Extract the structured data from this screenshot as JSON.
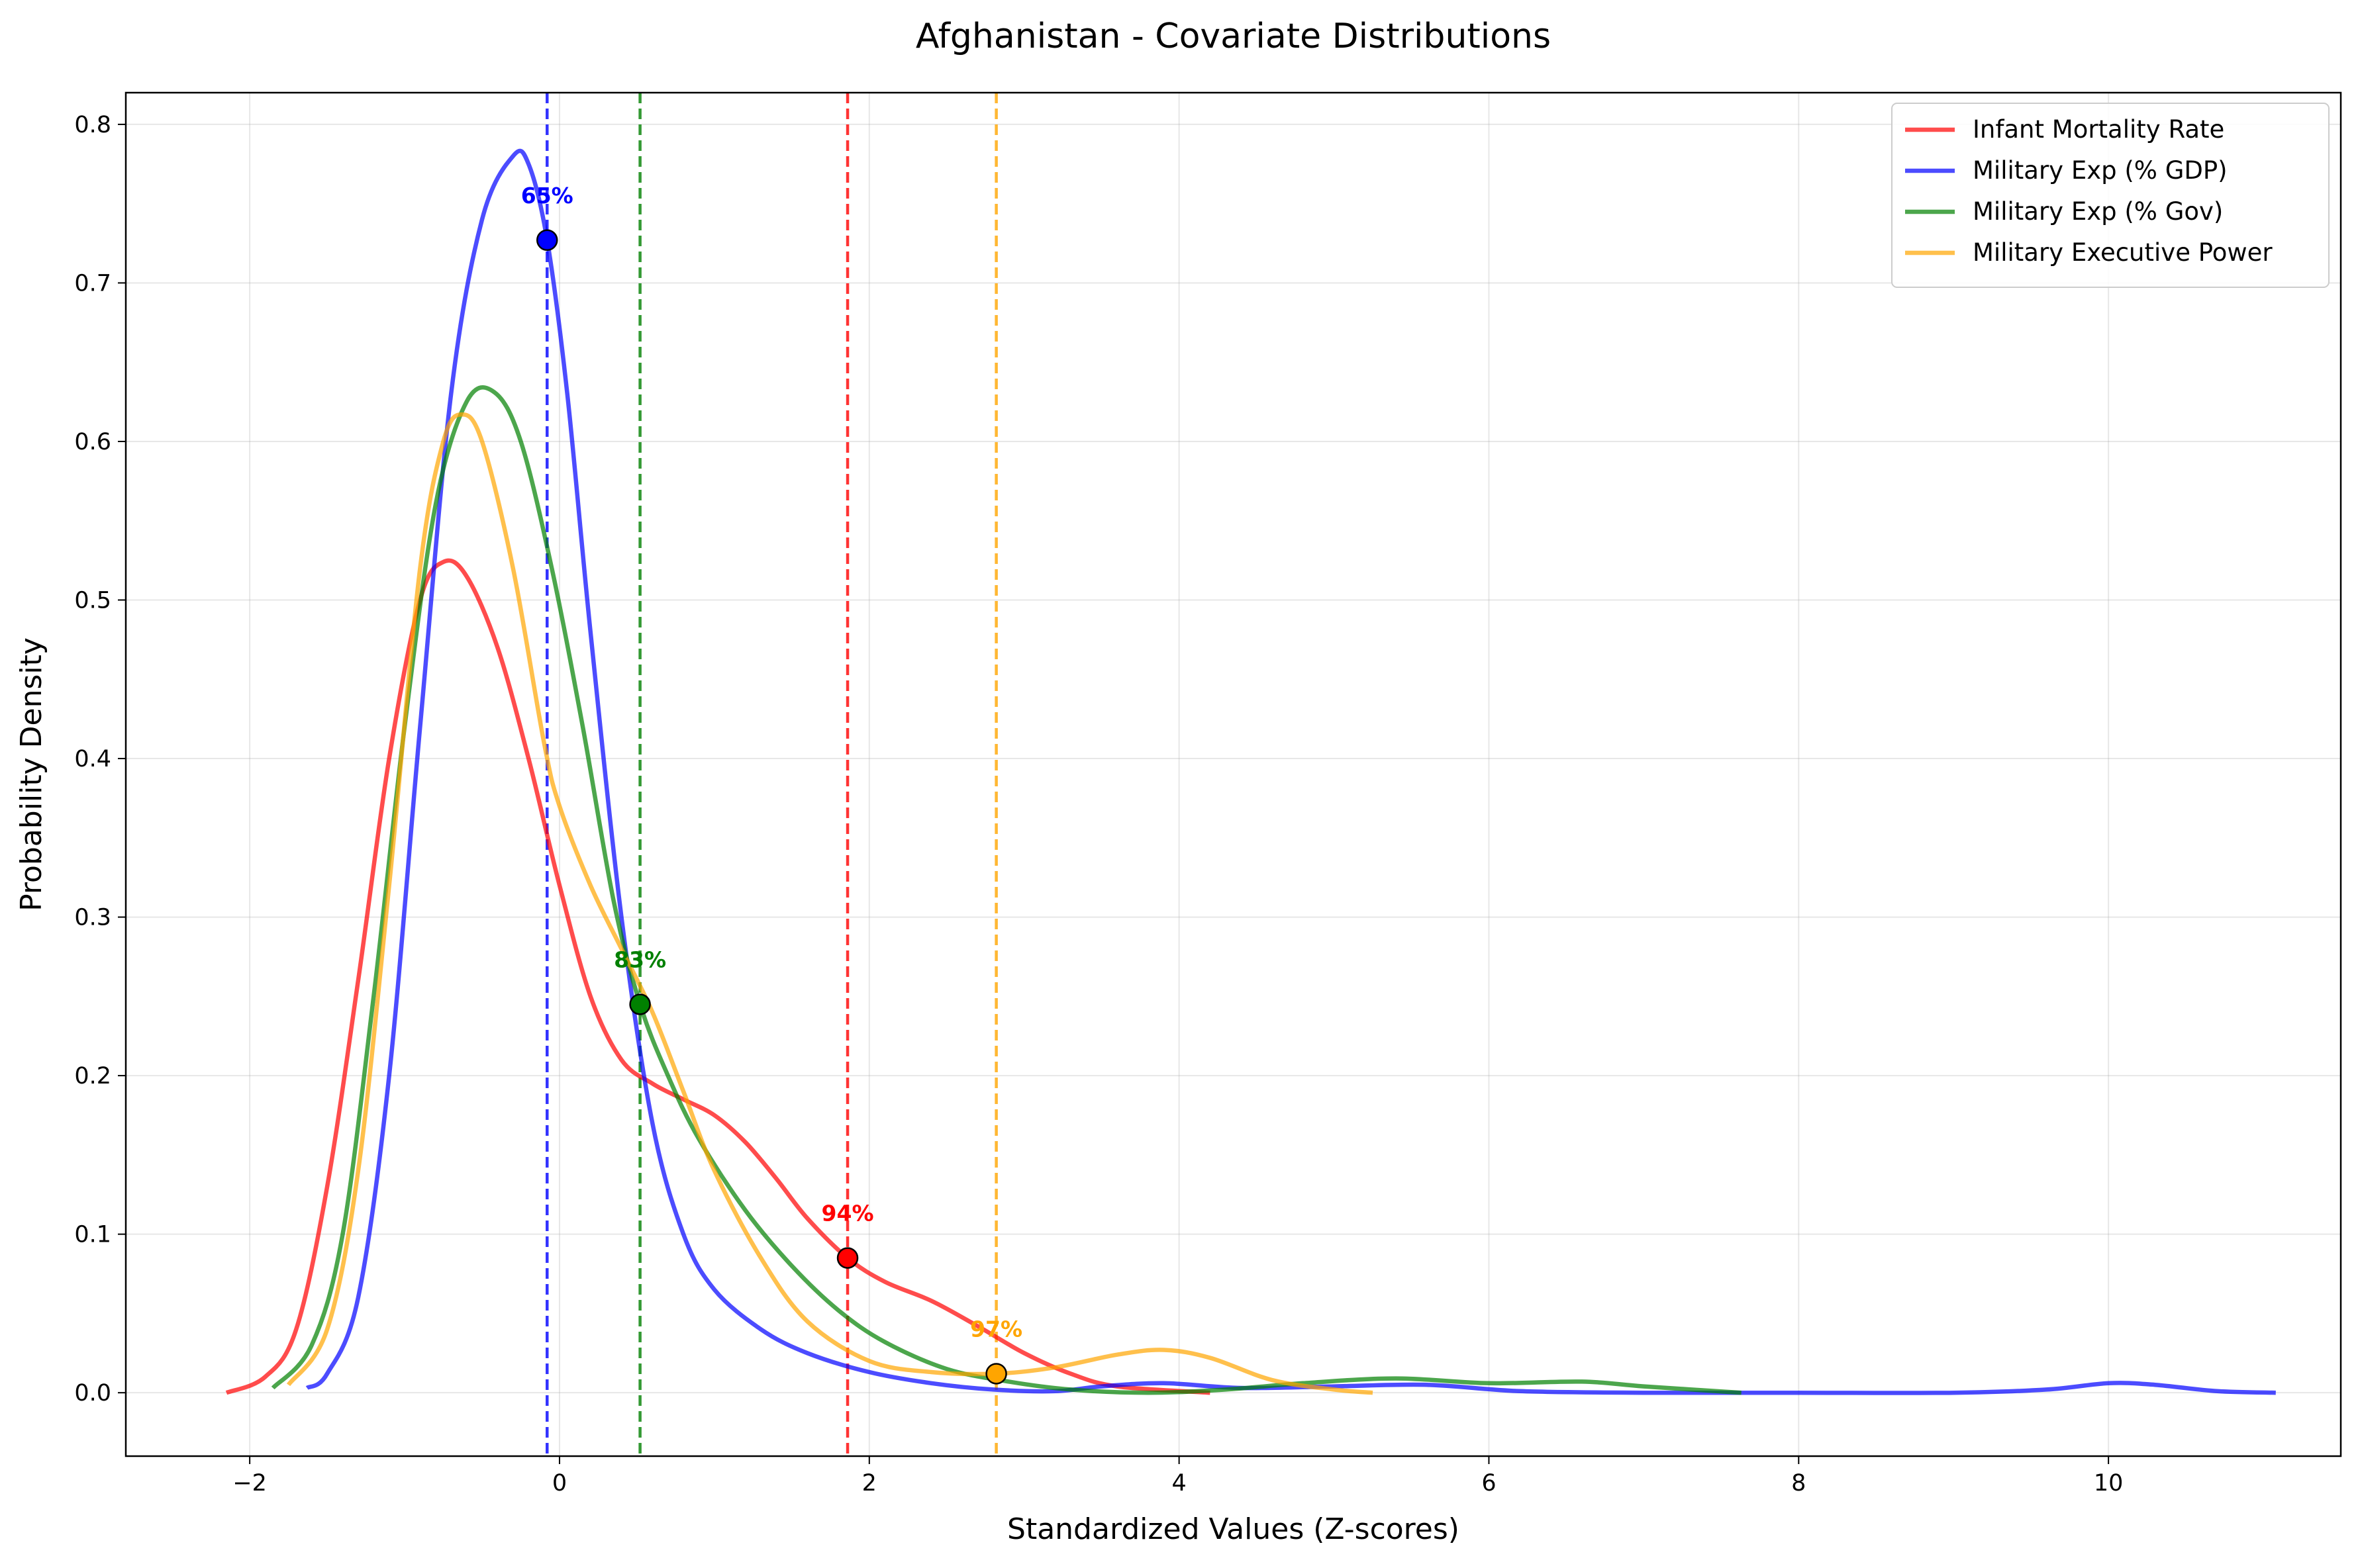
{
  "chart_data": {
    "type": "line",
    "title": "Afghanistan - Covariate Distributions",
    "xlabel": "Standardized Values (Z-scores)",
    "ylabel": "Probability Density",
    "xlim": [
      -2.8,
      11.5
    ],
    "ylim": [
      -0.04,
      0.82
    ],
    "xticks": [
      -2,
      0,
      2,
      4,
      6,
      8,
      10
    ],
    "yticks": [
      0.0,
      0.1,
      0.2,
      0.3,
      0.4,
      0.5,
      0.6,
      0.7,
      0.8
    ],
    "grid": true,
    "legend_position": "top-right",
    "series": [
      {
        "name": "Infant Mortality Rate",
        "color": "#ff0000",
        "points": [
          [
            -2.15,
            0.0
          ],
          [
            -1.9,
            0.01
          ],
          [
            -1.7,
            0.04
          ],
          [
            -1.5,
            0.13
          ],
          [
            -1.3,
            0.26
          ],
          [
            -1.1,
            0.4
          ],
          [
            -0.9,
            0.5
          ],
          [
            -0.75,
            0.524
          ],
          [
            -0.6,
            0.515
          ],
          [
            -0.4,
            0.47
          ],
          [
            -0.2,
            0.4
          ],
          [
            0.0,
            0.32
          ],
          [
            0.2,
            0.25
          ],
          [
            0.4,
            0.21
          ],
          [
            0.6,
            0.195
          ],
          [
            0.8,
            0.185
          ],
          [
            1.0,
            0.175
          ],
          [
            1.2,
            0.158
          ],
          [
            1.4,
            0.135
          ],
          [
            1.6,
            0.11
          ],
          [
            1.86,
            0.085
          ],
          [
            2.1,
            0.07
          ],
          [
            2.4,
            0.058
          ],
          [
            2.7,
            0.042
          ],
          [
            3.0,
            0.025
          ],
          [
            3.3,
            0.012
          ],
          [
            3.6,
            0.004
          ],
          [
            4.2,
            0.0
          ]
        ],
        "marker": {
          "x": 1.86,
          "y": 0.085,
          "label": "94%"
        }
      },
      {
        "name": "Military Exp (% GDP)",
        "color": "#0000ff",
        "points": [
          [
            -1.63,
            0.003
          ],
          [
            -1.5,
            0.012
          ],
          [
            -1.3,
            0.06
          ],
          [
            -1.1,
            0.2
          ],
          [
            -0.9,
            0.42
          ],
          [
            -0.7,
            0.63
          ],
          [
            -0.5,
            0.74
          ],
          [
            -0.3,
            0.78
          ],
          [
            -0.2,
            0.775
          ],
          [
            -0.08,
            0.727
          ],
          [
            0.05,
            0.63
          ],
          [
            0.2,
            0.48
          ],
          [
            0.4,
            0.3
          ],
          [
            0.6,
            0.17
          ],
          [
            0.8,
            0.1
          ],
          [
            1.0,
            0.065
          ],
          [
            1.3,
            0.04
          ],
          [
            1.6,
            0.025
          ],
          [
            2.0,
            0.013
          ],
          [
            2.4,
            0.006
          ],
          [
            2.8,
            0.002
          ],
          [
            3.2,
            0.001
          ],
          [
            3.5,
            0.004
          ],
          [
            3.9,
            0.006
          ],
          [
            4.4,
            0.003
          ],
          [
            5.0,
            0.004
          ],
          [
            5.6,
            0.005
          ],
          [
            6.2,
            0.001
          ],
          [
            7.0,
            0.0
          ],
          [
            8.0,
            0.0
          ],
          [
            9.0,
            0.0
          ],
          [
            9.6,
            0.002
          ],
          [
            10.0,
            0.006
          ],
          [
            10.3,
            0.005
          ],
          [
            10.7,
            0.001
          ],
          [
            11.08,
            0.0
          ]
        ],
        "marker": {
          "x": -0.08,
          "y": 0.727,
          "label": "65%"
        }
      },
      {
        "name": "Military Exp (% Gov)",
        "color": "#008000",
        "points": [
          [
            -1.85,
            0.003
          ],
          [
            -1.6,
            0.03
          ],
          [
            -1.4,
            0.1
          ],
          [
            -1.2,
            0.25
          ],
          [
            -1.0,
            0.42
          ],
          [
            -0.8,
            0.56
          ],
          [
            -0.6,
            0.625
          ],
          [
            -0.42,
            0.631
          ],
          [
            -0.25,
            0.6
          ],
          [
            -0.05,
            0.52
          ],
          [
            0.15,
            0.42
          ],
          [
            0.35,
            0.31
          ],
          [
            0.52,
            0.245
          ],
          [
            0.7,
            0.2
          ],
          [
            0.9,
            0.16
          ],
          [
            1.2,
            0.115
          ],
          [
            1.5,
            0.08
          ],
          [
            1.8,
            0.052
          ],
          [
            2.1,
            0.032
          ],
          [
            2.5,
            0.015
          ],
          [
            2.9,
            0.007
          ],
          [
            3.3,
            0.002
          ],
          [
            3.8,
            0.0
          ],
          [
            4.3,
            0.002
          ],
          [
            4.8,
            0.006
          ],
          [
            5.4,
            0.009
          ],
          [
            6.0,
            0.006
          ],
          [
            6.6,
            0.007
          ],
          [
            7.0,
            0.004
          ],
          [
            7.63,
            0.0
          ]
        ],
        "marker": {
          "x": 0.52,
          "y": 0.245,
          "label": "83%"
        }
      },
      {
        "name": "Military Executive Power",
        "color": "#ffa500",
        "points": [
          [
            -1.75,
            0.005
          ],
          [
            -1.5,
            0.04
          ],
          [
            -1.3,
            0.14
          ],
          [
            -1.1,
            0.32
          ],
          [
            -0.9,
            0.52
          ],
          [
            -0.75,
            0.6
          ],
          [
            -0.63,
            0.617
          ],
          [
            -0.5,
            0.6
          ],
          [
            -0.3,
            0.52
          ],
          [
            -0.1,
            0.41
          ],
          [
            0.0,
            0.37
          ],
          [
            0.2,
            0.32
          ],
          [
            0.4,
            0.28
          ],
          [
            0.6,
            0.24
          ],
          [
            0.8,
            0.19
          ],
          [
            1.0,
            0.14
          ],
          [
            1.3,
            0.085
          ],
          [
            1.6,
            0.045
          ],
          [
            2.0,
            0.02
          ],
          [
            2.4,
            0.013
          ],
          [
            2.82,
            0.012
          ],
          [
            3.2,
            0.016
          ],
          [
            3.6,
            0.024
          ],
          [
            3.9,
            0.027
          ],
          [
            4.2,
            0.022
          ],
          [
            4.6,
            0.008
          ],
          [
            5.0,
            0.002
          ],
          [
            5.25,
            0.0
          ]
        ],
        "marker": {
          "x": 2.82,
          "y": 0.012,
          "label": "97%"
        }
      }
    ]
  }
}
